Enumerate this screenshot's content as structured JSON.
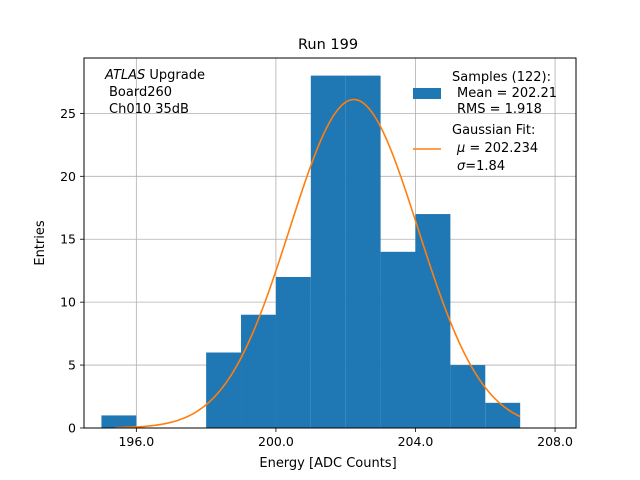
{
  "chart_data": {
    "type": "bar",
    "title": "Run 199",
    "xlabel": "Energy [ADC Counts]",
    "ylabel": "Entries",
    "xlim": [
      194.5,
      208.6
    ],
    "ylim": [
      0,
      29.4
    ],
    "xticks": [
      196.0,
      200.0,
      204.0,
      208.0
    ],
    "xtick_labels": [
      "196.0",
      "200.0",
      "204.0",
      "208.0"
    ],
    "yticks": [
      0,
      5,
      10,
      15,
      20,
      25
    ],
    "ytick_labels": [
      "0",
      "5",
      "10",
      "15",
      "20",
      "25"
    ],
    "grid": true,
    "bar_color": "#1f77b4",
    "fit_color": "#ff7f0e",
    "histogram": {
      "bin_edges": [
        195,
        196,
        197,
        198,
        199,
        200,
        201,
        202,
        203,
        204,
        205,
        206,
        207
      ],
      "counts": [
        1,
        0,
        0,
        6,
        9,
        12,
        28,
        28,
        14,
        17,
        5,
        2
      ]
    },
    "fit": {
      "mu": 202.234,
      "sigma": 1.84,
      "amplitude": 26.1,
      "x_range": [
        195.4,
        207
      ]
    },
    "annotation": {
      "line1_italic": "ATLAS",
      "line1_rest": " Upgrade",
      "line2": "Board260",
      "line3": "Ch010 35dB"
    },
    "legend": {
      "position": "upper right",
      "samples_title": "Samples (122):",
      "samples_mean": "Mean = 202.21",
      "samples_rms": "RMS = 1.918",
      "fit_title": "Gaussian Fit:",
      "fit_mu_symbol": "μ",
      "fit_mu_value": " = 202.234",
      "fit_sigma_symbol": "σ",
      "fit_sigma_value": "=1.84"
    }
  }
}
